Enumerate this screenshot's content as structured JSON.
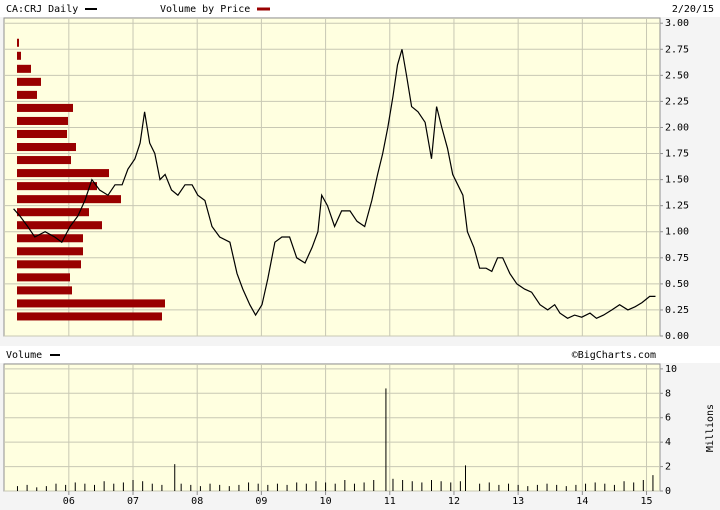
{
  "chart_data": [
    {
      "type": "line",
      "title": "CA:CRJ Daily",
      "date": "2/20/15",
      "grid": true,
      "xlim": [
        2004.99,
        2015.21
      ],
      "ylim": [
        0,
        3.05
      ],
      "xticks": [
        {
          "value": 2006,
          "label": "06"
        },
        {
          "value": 2007,
          "label": "07"
        },
        {
          "value": 2008,
          "label": "08"
        },
        {
          "value": 2009,
          "label": "09"
        },
        {
          "value": 2010,
          "label": "10"
        },
        {
          "value": 2011,
          "label": "11"
        },
        {
          "value": 2012,
          "label": "12"
        },
        {
          "value": 2013,
          "label": "13"
        },
        {
          "value": 2014,
          "label": "14"
        },
        {
          "value": 2015,
          "label": "15"
        }
      ],
      "yticks": [
        {
          "value": 0,
          "label": "0.00"
        },
        0.25,
        {
          "value": 0.5,
          "label": "0.50"
        },
        0.75,
        {
          "value": 1,
          "label": "1.00"
        },
        1.25,
        {
          "value": 1.5,
          "label": "1.50"
        },
        1.75,
        {
          "value": 2,
          "label": "2.00"
        },
        2.25,
        {
          "value": 2.5,
          "label": "2.50"
        },
        2.75,
        {
          "value": 3,
          "label": "3.00"
        }
      ],
      "series": [
        {
          "name": "CA:CRJ Daily",
          "color": "#000000",
          "x": [
            2005.14,
            2005.24,
            2005.36,
            2005.47,
            2005.63,
            2005.78,
            2005.89,
            2006.02,
            2006.14,
            2006.25,
            2006.36,
            2006.48,
            2006.61,
            2006.72,
            2006.83,
            2006.92,
            2007.03,
            2007.11,
            2007.18,
            2007.26,
            2007.34,
            2007.42,
            2007.5,
            2007.6,
            2007.7,
            2007.81,
            2007.92,
            2008.01,
            2008.12,
            2008.23,
            2008.35,
            2008.51,
            2008.62,
            2008.71,
            2008.82,
            2008.91,
            2009.01,
            2009.1,
            2009.21,
            2009.32,
            2009.44,
            2009.55,
            2009.68,
            2009.79,
            2009.88,
            2009.94,
            2010.03,
            2010.14,
            2010.25,
            2010.38,
            2010.49,
            2010.61,
            2010.72,
            2010.81,
            2010.89,
            2010.97,
            2011.05,
            2011.12,
            2011.19,
            2011.26,
            2011.34,
            2011.44,
            2011.55,
            2011.65,
            2011.73,
            2011.81,
            2011.9,
            2011.98,
            2012.06,
            2012.14,
            2012.21,
            2012.31,
            2012.4,
            2012.5,
            2012.59,
            2012.68,
            2012.76,
            2012.87,
            2012.98,
            2013.1,
            2013.21,
            2013.34,
            2013.46,
            2013.57,
            2013.65,
            2013.77,
            2013.88,
            2013.99,
            2014.12,
            2014.22,
            2014.33,
            2014.46,
            2014.58,
            2014.71,
            2014.82,
            2014.93,
            2015.05,
            2015.14
          ],
          "values": [
            1.22,
            1.15,
            1.05,
            0.95,
            1.0,
            0.95,
            0.9,
            1.05,
            1.15,
            1.3,
            1.5,
            1.4,
            1.35,
            1.45,
            1.45,
            1.6,
            1.7,
            1.85,
            2.15,
            1.85,
            1.75,
            1.5,
            1.55,
            1.4,
            1.35,
            1.45,
            1.45,
            1.35,
            1.3,
            1.05,
            0.95,
            0.9,
            0.6,
            0.45,
            0.3,
            0.2,
            0.3,
            0.55,
            0.9,
            0.95,
            0.95,
            0.75,
            0.7,
            0.85,
            1.0,
            1.35,
            1.25,
            1.05,
            1.2,
            1.2,
            1.1,
            1.05,
            1.3,
            1.55,
            1.75,
            2.0,
            2.3,
            2.6,
            2.75,
            2.5,
            2.2,
            2.15,
            2.05,
            1.7,
            2.2,
            2.0,
            1.8,
            1.55,
            1.45,
            1.35,
            1.0,
            0.85,
            0.65,
            0.65,
            0.62,
            0.75,
            0.75,
            0.6,
            0.5,
            0.45,
            0.42,
            0.3,
            0.25,
            0.3,
            0.22,
            0.17,
            0.2,
            0.18,
            0.22,
            0.17,
            0.2,
            0.25,
            0.3,
            0.25,
            0.28,
            0.32,
            0.38,
            0.38
          ]
        }
      ],
      "volume_by_price": {
        "name": "Volume by Price",
        "color": "#990000",
        "bins": [
          0.125,
          0.25,
          0.375,
          0.5,
          0.625,
          0.75,
          0.875,
          1.0,
          1.125,
          1.25,
          1.375,
          1.5,
          1.625,
          1.75,
          1.875,
          2.0,
          2.125,
          2.25,
          2.375,
          2.5,
          2.625,
          2.75,
          2.875
        ],
        "values": [
          145,
          148,
          55,
          53,
          64,
          66,
          66,
          85,
          72,
          104,
          80,
          92,
          54,
          59,
          50,
          51,
          56,
          20,
          24,
          14,
          4,
          2
        ]
      }
    },
    {
      "type": "bar",
      "source": "©BigCharts.com",
      "ylabel": "Millions",
      "grid": true,
      "xlim": [
        2004.99,
        2015.21
      ],
      "ylim": [
        0,
        10.4
      ],
      "yticks": [
        0,
        2,
        4,
        6,
        8,
        10
      ],
      "series": [
        {
          "name": "Volume",
          "color": "#000000",
          "x": [
            2005.2,
            2005.35,
            2005.5,
            2005.65,
            2005.8,
            2005.95,
            2006.1,
            2006.25,
            2006.4,
            2006.55,
            2006.7,
            2006.85,
            2007.0,
            2007.15,
            2007.3,
            2007.45,
            2007.65,
            2007.75,
            2007.9,
            2008.05,
            2008.2,
            2008.35,
            2008.5,
            2008.65,
            2008.8,
            2008.95,
            2009.1,
            2009.25,
            2009.4,
            2009.55,
            2009.7,
            2009.85,
            2010.0,
            2010.15,
            2010.3,
            2010.45,
            2010.6,
            2010.75,
            2010.94,
            2011.05,
            2011.2,
            2011.35,
            2011.5,
            2011.65,
            2011.8,
            2011.95,
            2012.1,
            2012.18,
            2012.4,
            2012.55,
            2012.7,
            2012.85,
            2013.0,
            2013.15,
            2013.3,
            2013.45,
            2013.6,
            2013.75,
            2013.9,
            2014.05,
            2014.2,
            2014.35,
            2014.5,
            2014.65,
            2014.8,
            2014.95,
            2015.1
          ],
          "values": [
            0.4,
            0.5,
            0.3,
            0.4,
            0.6,
            0.5,
            0.7,
            0.6,
            0.5,
            0.8,
            0.6,
            0.7,
            0.9,
            0.8,
            0.6,
            0.5,
            2.2,
            0.6,
            0.5,
            0.4,
            0.6,
            0.5,
            0.4,
            0.5,
            0.7,
            0.6,
            0.5,
            0.6,
            0.5,
            0.7,
            0.6,
            0.8,
            0.7,
            0.6,
            0.9,
            0.6,
            0.7,
            0.9,
            8.4,
            1.0,
            0.9,
            0.8,
            0.7,
            0.9,
            0.8,
            0.7,
            0.8,
            2.1,
            0.6,
            0.7,
            0.5,
            0.6,
            0.5,
            0.4,
            0.5,
            0.6,
            0.5,
            0.4,
            0.5,
            0.6,
            0.7,
            0.6,
            0.5,
            0.8,
            0.7,
            0.9,
            1.3
          ]
        }
      ]
    }
  ]
}
